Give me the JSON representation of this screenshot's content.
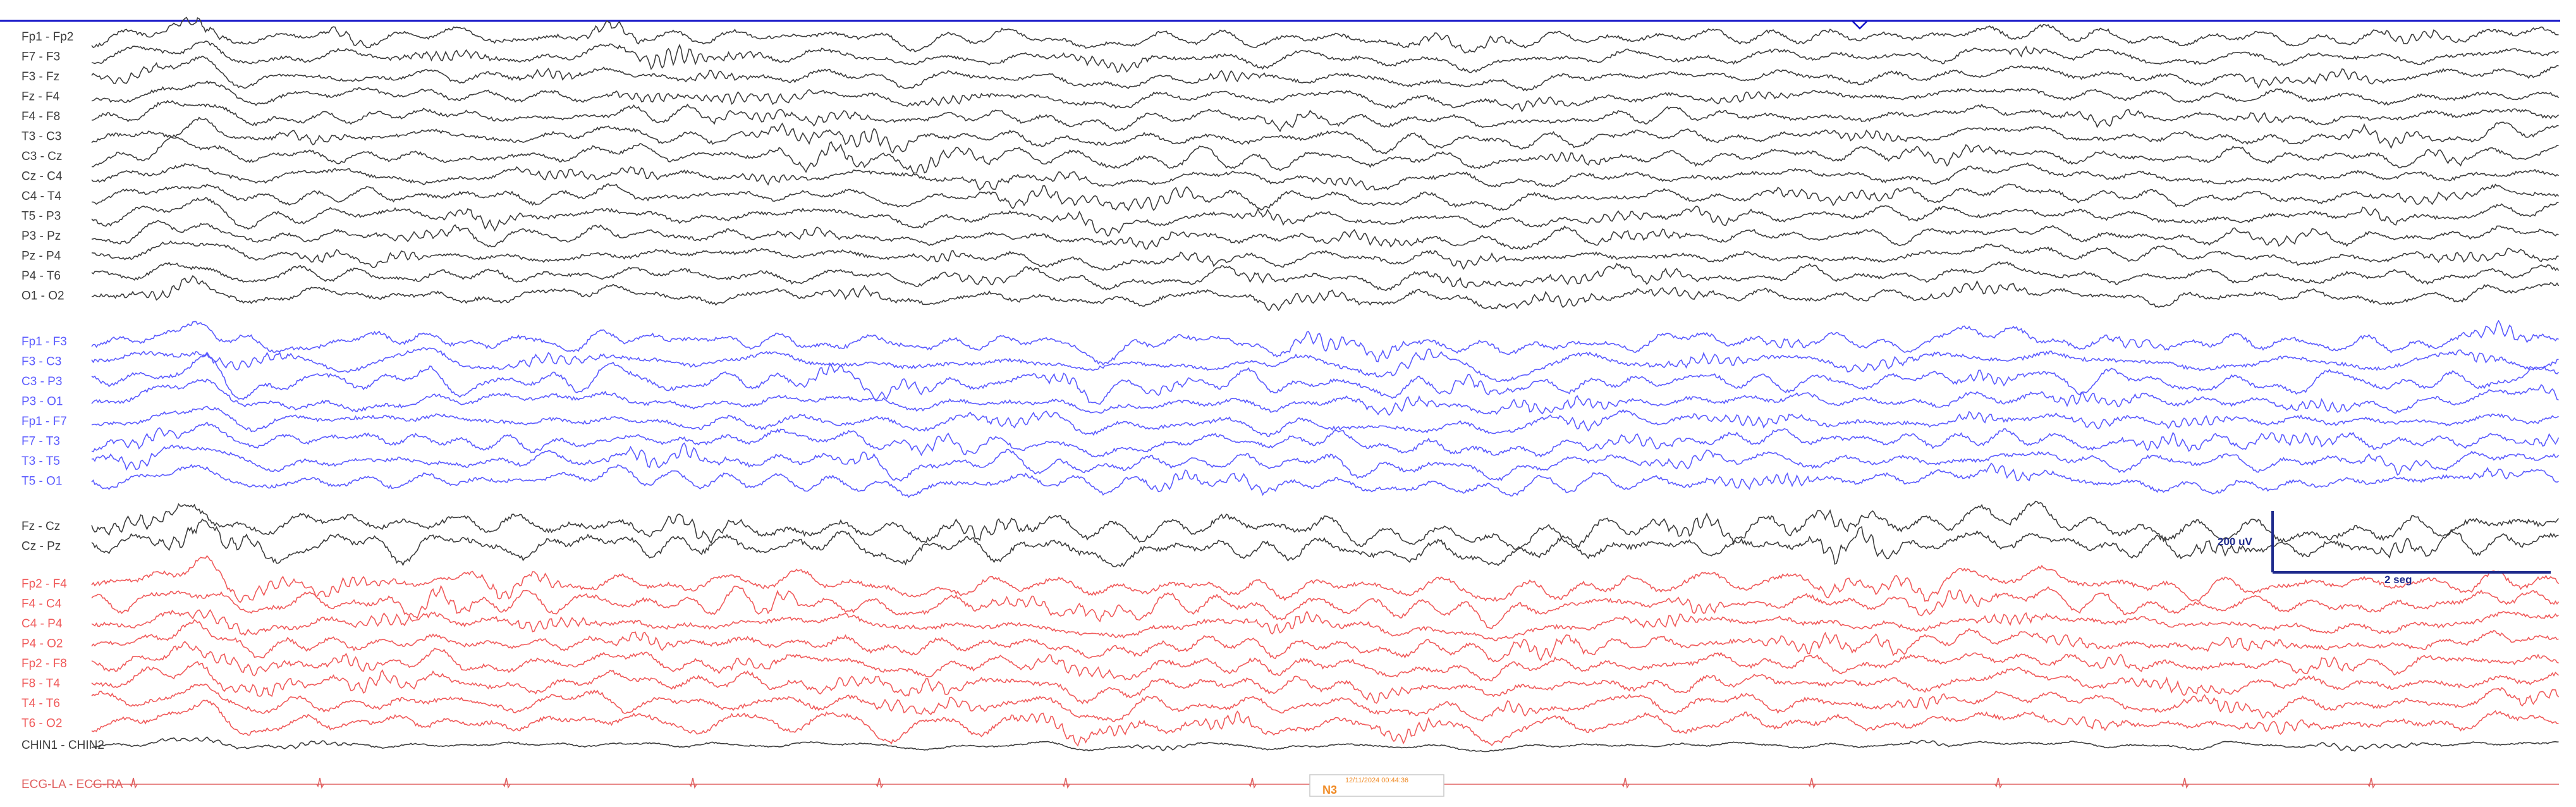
{
  "viewer": {
    "page_duration_seconds": 30,
    "colors": {
      "background": "#ffffff",
      "group_black": "#3c3c3c",
      "group_blue": "#5a5aff",
      "group_red": "#f05a5a",
      "chin": "#3c3c3c",
      "ecg": "#e06060",
      "cursor_line": "#1414c8",
      "scale_bar": "#1e2a8c",
      "timestamp_text": "#f08a24",
      "timestamp_border": "#c8c8c8"
    }
  },
  "montage": {
    "groups": [
      {
        "name": "group-black",
        "color_key": "group_black",
        "channels": [
          {
            "label": "Fp1 - Fp2"
          },
          {
            "label": "F7 - F3"
          },
          {
            "label": "F3 - Fz"
          },
          {
            "label": "Fz - F4"
          },
          {
            "label": "F4 - F8"
          },
          {
            "label": "T3 - C3"
          },
          {
            "label": "C3 - Cz"
          },
          {
            "label": "Cz - C4"
          },
          {
            "label": "C4 - T4"
          },
          {
            "label": "T5 - P3"
          },
          {
            "label": "P3 - Pz"
          },
          {
            "label": "Pz - P4"
          },
          {
            "label": "P4 - T6"
          },
          {
            "label": "O1 - O2"
          }
        ]
      },
      {
        "name": "group-blue",
        "color_key": "group_blue",
        "channels": [
          {
            "label": "Fp1 - F3"
          },
          {
            "label": "F3 - C3"
          },
          {
            "label": "C3 - P3"
          },
          {
            "label": "P3 - O1"
          },
          {
            "label": "Fp1 - F7"
          },
          {
            "label": "F7 - T3"
          },
          {
            "label": "T3 - T5"
          },
          {
            "label": "T5 - O1"
          }
        ]
      },
      {
        "name": "group-midline",
        "color_key": "group_black",
        "channels": [
          {
            "label": "Fz - Cz"
          },
          {
            "label": "Cz - Pz"
          }
        ]
      },
      {
        "name": "group-red",
        "color_key": "group_red",
        "channels": [
          {
            "label": "Fp2 - F4"
          },
          {
            "label": "F4 - C4"
          },
          {
            "label": "C4 - P4"
          },
          {
            "label": "P4 - O2"
          },
          {
            "label": "Fp2 - F8"
          },
          {
            "label": "F8 - T4"
          },
          {
            "label": "T4 - T6"
          },
          {
            "label": "T6 - O2"
          }
        ]
      },
      {
        "name": "group-chin",
        "color_key": "chin",
        "channels": [
          {
            "label": "CHIN1 - CHIN2"
          }
        ]
      },
      {
        "name": "group-ecg",
        "color_key": "ecg",
        "channels": [
          {
            "label": "ECG-LA - ECG-RA"
          }
        ]
      }
    ]
  },
  "scale_bar": {
    "amplitude_label": "200 uV",
    "time_label": "2 seg"
  },
  "epoch": {
    "timestamp": "12/11/2024 00:44:36",
    "sleep_stage": "N3"
  }
}
